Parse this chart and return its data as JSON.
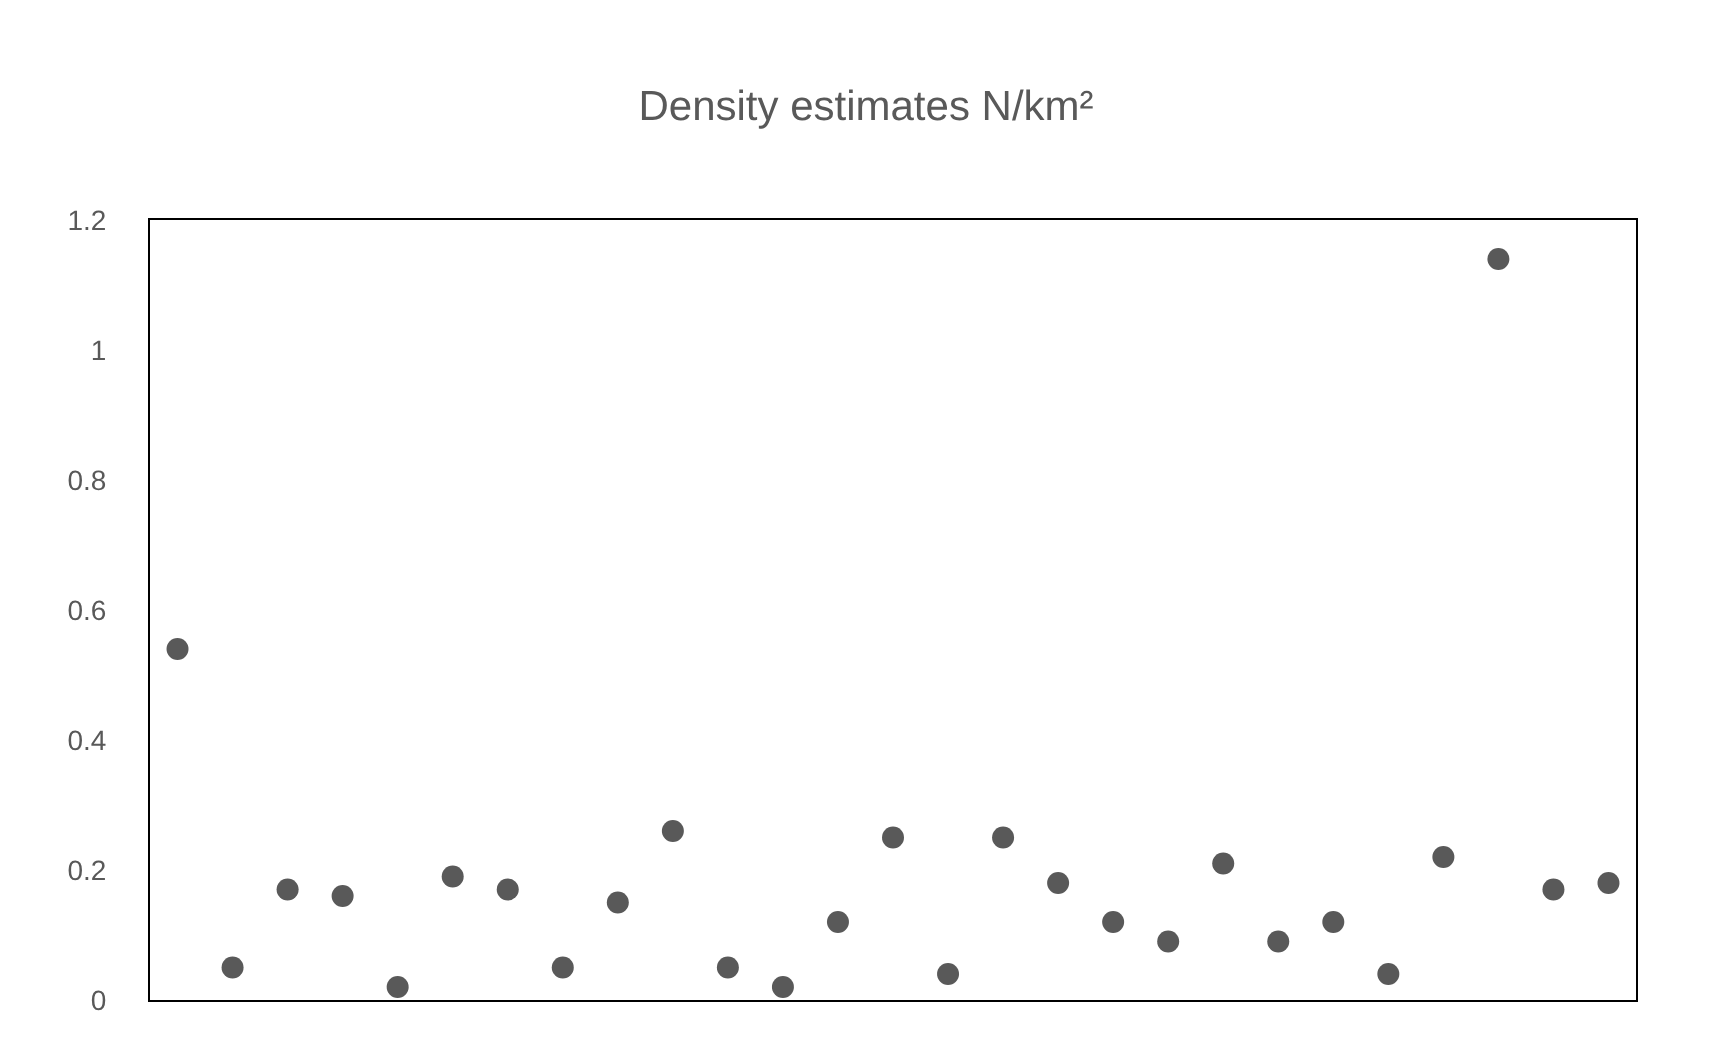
{
  "chart_data": {
    "type": "scatter",
    "title": "Density estimates N/km²",
    "categories": [
      null,
      null,
      null,
      null,
      null,
      null,
      null,
      null,
      null,
      null,
      null,
      null,
      null,
      null,
      null,
      null,
      null,
      null,
      null,
      null,
      null,
      null,
      null,
      null,
      null,
      null,
      null
    ],
    "series": [
      {
        "color": "#595959",
        "values": [
          0.54,
          0.05,
          0.17,
          0.16,
          0.02,
          0.19,
          0.17,
          0.05,
          0.15,
          0.26,
          0.05,
          0.02,
          0.12,
          0.25,
          0.04,
          0.25,
          0.18,
          0.12,
          0.09,
          0.21,
          0.09,
          0.12,
          0.04,
          0.22,
          1.14,
          0.17,
          0.18
        ]
      }
    ],
    "ylim": [
      0,
      1.2
    ],
    "yticks": [
      0,
      0.2,
      0.4,
      0.6,
      0.8,
      1,
      1.2
    ],
    "grid": false,
    "marker": "circle"
  }
}
